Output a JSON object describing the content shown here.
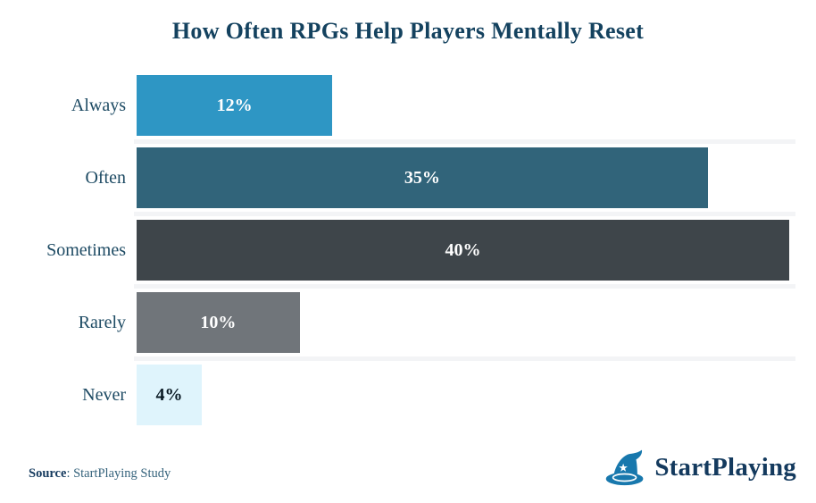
{
  "title": "How Often RPGs Help Players Mentally Reset",
  "chart_data": {
    "type": "bar",
    "orientation": "horizontal",
    "title": "How Often RPGs Help Players Mentally Reset",
    "categories": [
      "Always",
      "Often",
      "Sometimes",
      "Rarely",
      "Never"
    ],
    "values": [
      12,
      35,
      40,
      10,
      4
    ],
    "value_labels": [
      "12%",
      "35%",
      "40%",
      "10%",
      "4%"
    ],
    "bar_colors": [
      "#2e96c4",
      "#31647a",
      "#3e454a",
      "#70757a",
      "#dff4fc"
    ],
    "value_label_colors": [
      "#ffffff",
      "#ffffff",
      "#ffffff",
      "#ffffff",
      "#0a1a24"
    ],
    "xlim": [
      0,
      40
    ],
    "xlabel": "",
    "ylabel": "",
    "grid": false,
    "legend": false,
    "value_labels_position": "center-inside"
  },
  "footer": {
    "source_label": "Source",
    "source_text": ": StartPlaying Study",
    "brand_name": "StartPlaying"
  },
  "icons": {
    "logo": "wizard-hat-icon"
  },
  "colors": {
    "title_text": "#14425f",
    "category_label_text": "#1d4a63",
    "row_separator": "#f3f4f6",
    "source_label_text": "#143a5e",
    "source_body_text": "#35637c",
    "brand_text": "#143a5e",
    "brand_icon": "#1878ad",
    "background": "#ffffff"
  }
}
